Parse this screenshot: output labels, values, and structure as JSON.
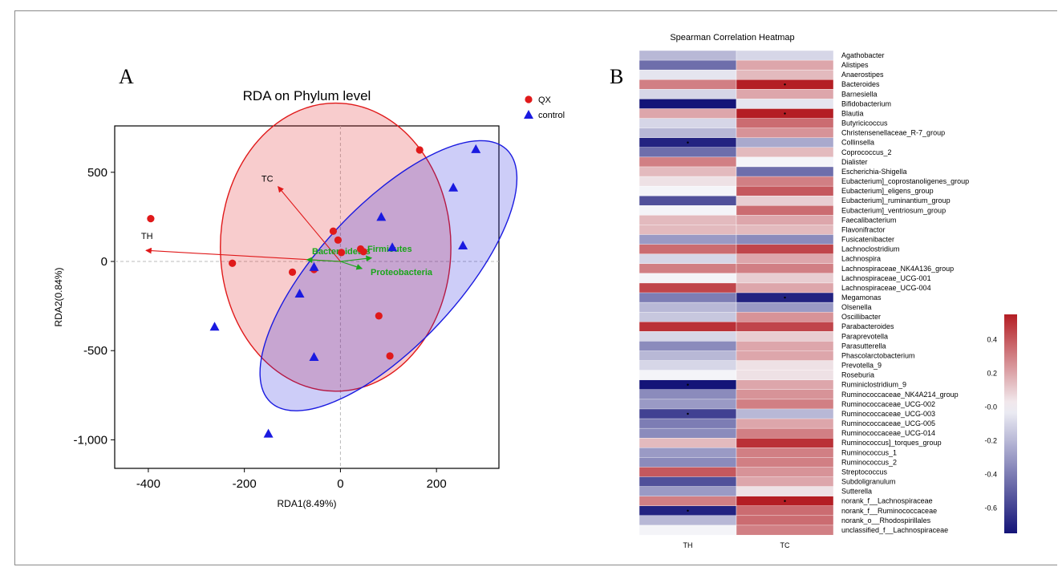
{
  "panel_a_letter": "A",
  "panel_b_letter": "B",
  "chart_data": [
    {
      "type": "scatter",
      "title": "RDA on Phylum level",
      "xlabel": "RDA1(8.49%)",
      "ylabel": "RDA2(0.84%)",
      "xlim": [
        -470,
        330
      ],
      "ylim": [
        -1160,
        760
      ],
      "xticks": [
        -400,
        -200,
        0,
        200
      ],
      "xtick_labels": [
        "-400",
        "-200",
        "0",
        "200"
      ],
      "yticks": [
        500,
        0,
        -500,
        -1000
      ],
      "ytick_labels": [
        "500",
        "0",
        "-500",
        "-1,000"
      ],
      "legend_position": "top-right",
      "series": [
        {
          "name": "QX",
          "marker": "circle",
          "color": "#e0191a",
          "points": [
            [
              -395,
              240
            ],
            [
              -225,
              -10
            ],
            [
              -100,
              -60
            ],
            [
              -55,
              -45
            ],
            [
              -15,
              170
            ],
            [
              -5,
              120
            ],
            [
              2,
              50
            ],
            [
              42,
              70
            ],
            [
              48,
              55
            ],
            [
              80,
              -305
            ],
            [
              103,
              -530
            ],
            [
              165,
              625
            ]
          ]
        },
        {
          "name": "control",
          "marker": "triangle",
          "color": "#1a1ae0",
          "points": [
            [
              -262,
              -365
            ],
            [
              -150,
              -965
            ],
            [
              -85,
              -180
            ],
            [
              -55,
              -30
            ],
            [
              -55,
              -535
            ],
            [
              85,
              250
            ],
            [
              108,
              80
            ],
            [
              235,
              415
            ],
            [
              255,
              90
            ],
            [
              282,
              630
            ]
          ]
        }
      ],
      "ellipses": [
        {
          "group": "QX",
          "color": "#e0191a",
          "cx": -10,
          "cy": 80,
          "rx": 240,
          "ry": 300,
          "rotate_deg": 0
        },
        {
          "group": "control",
          "color": "#1a1ae0",
          "cx": 100,
          "cy": -80,
          "rx": 360,
          "ry": 145,
          "rotate_deg": -47
        }
      ],
      "arrows": [
        {
          "label": "TC",
          "color": "#e0191a",
          "label_color": "#000000",
          "x": -130,
          "y": 420
        },
        {
          "label": "TH",
          "color": "#e0191a",
          "label_color": "#000000",
          "x": -405,
          "y": 62
        },
        {
          "label": "Bacteroidetes",
          "color": "#1aa51a",
          "label_color": "#1aa51a",
          "x": -70,
          "y": 10
        },
        {
          "label": "Firmicutes",
          "color": "#1aa51a",
          "label_color": "#1aa51a",
          "x": 65,
          "y": 20
        },
        {
          "label": "Proteobacteria",
          "color": "#1aa51a",
          "label_color": "#1aa51a",
          "x": 45,
          "y": -40
        }
      ]
    },
    {
      "type": "heatmap",
      "title": "Spearman Correlation Heatmap",
      "columns": [
        "TH",
        "TC"
      ],
      "rows": [
        "Agathobacter",
        "Alistipes",
        "Anaerostipes",
        "Bacteroides",
        "Barnesiella",
        "Bifidobacterium",
        "Blautia",
        "Butyricicoccus",
        "Christensenellaceae_R-7_group",
        "Collinsella",
        "Coprococcus_2",
        "Dialister",
        "Escherichia-Shigella",
        "Eubacterium]_coprostanoligenes_group",
        "Eubacterium]_eligens_group",
        "Eubacterium]_ruminantium_group",
        "Eubacterium]_ventriosum_group",
        "Faecalibacterium",
        "Flavonifractor",
        "Fusicatenibacter",
        "Lachnoclostridium",
        "Lachnospira",
        "Lachnospiraceae_NK4A136_group",
        "Lachnospiraceae_UCG-001",
        "Lachnospiraceae_UCG-004",
        "Megamonas",
        "Olsenella",
        "Oscillibacter",
        "Parabacteroides",
        "Paraprevotella",
        "Parasutterella",
        "Phascolarctobacterium",
        "Prevotella_9",
        "Roseburia",
        "Ruminiclostridium_9",
        "Ruminococcaceae_NK4A214_group",
        "Ruminococcaceae_UCG-002",
        "Ruminococcaceae_UCG-003",
        "Ruminococcaceae_UCG-005",
        "Ruminococcaceae_UCG-014",
        "Ruminococcus]_torques_group",
        "Ruminococcus_1",
        "Ruminococcus_2",
        "Streptococcus",
        "Subdoligranulum",
        "Sutterella",
        "norank_f__Lachnospiraceae",
        "norank_f__Ruminococcaceae",
        "norank_o__Rhodospirillales",
        "unclassified_f__Lachnospiraceae"
      ],
      "values": [
        [
          -0.2,
          -0.1
        ],
        [
          -0.45,
          0.2
        ],
        [
          -0.05,
          0.15
        ],
        [
          0.3,
          0.55
        ],
        [
          -0.1,
          0.2
        ],
        [
          -0.75,
          -0.05
        ],
        [
          0.2,
          0.55
        ],
        [
          -0.1,
          0.35
        ],
        [
          -0.2,
          0.25
        ],
        [
          -0.7,
          -0.25
        ],
        [
          -0.45,
          0.15
        ],
        [
          0.3,
          0.0
        ],
        [
          0.15,
          -0.45
        ],
        [
          0.05,
          0.3
        ],
        [
          0.0,
          0.4
        ],
        [
          -0.55,
          0.1
        ],
        [
          0.0,
          0.35
        ],
        [
          0.15,
          0.2
        ],
        [
          0.15,
          0.15
        ],
        [
          -0.3,
          -0.35
        ],
        [
          0.35,
          0.45
        ],
        [
          -0.1,
          0.2
        ],
        [
          0.3,
          0.3
        ],
        [
          0.0,
          0.1
        ],
        [
          0.45,
          0.2
        ],
        [
          -0.4,
          -0.7
        ],
        [
          -0.2,
          -0.3
        ],
        [
          -0.15,
          0.25
        ],
        [
          0.5,
          0.45
        ],
        [
          -0.1,
          0.1
        ],
        [
          -0.35,
          0.2
        ],
        [
          -0.2,
          0.2
        ],
        [
          -0.1,
          0.05
        ],
        [
          0.0,
          0.05
        ],
        [
          -0.75,
          0.2
        ],
        [
          -0.35,
          0.25
        ],
        [
          -0.3,
          0.3
        ],
        [
          -0.6,
          -0.2
        ],
        [
          -0.4,
          0.2
        ],
        [
          -0.35,
          0.3
        ],
        [
          0.15,
          0.5
        ],
        [
          -0.3,
          0.3
        ],
        [
          -0.35,
          0.3
        ],
        [
          0.4,
          0.25
        ],
        [
          -0.55,
          0.2
        ],
        [
          -0.3,
          0.05
        ],
        [
          0.3,
          0.6
        ],
        [
          -0.7,
          0.35
        ],
        [
          -0.2,
          0.35
        ],
        [
          0.0,
          0.3
        ]
      ],
      "significant": [
        [
          3,
          1
        ],
        [
          6,
          1
        ],
        [
          9,
          0
        ],
        [
          25,
          1
        ],
        [
          34,
          0
        ],
        [
          37,
          0
        ],
        [
          46,
          1
        ],
        [
          47,
          0
        ]
      ],
      "colorbar": {
        "min": -0.75,
        "max": 0.55,
        "ticks": [
          0.4,
          0.2,
          0.0,
          -0.2,
          -0.4,
          -0.6
        ],
        "tick_labels": [
          "0.4",
          "0.2",
          "-0.0",
          "-0.2",
          "-0.4",
          "-0.6"
        ],
        "color_low": "#141478",
        "color_mid": "#f4f4f8",
        "color_high": "#b41e24"
      }
    }
  ]
}
